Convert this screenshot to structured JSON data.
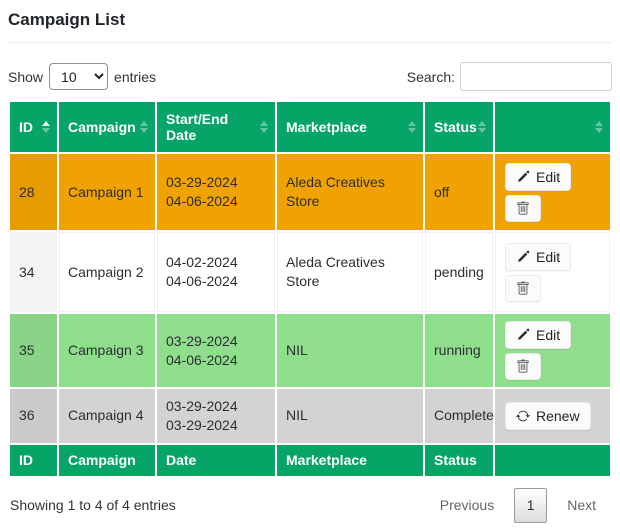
{
  "page": {
    "title": "Campaign List"
  },
  "controls": {
    "show_label": "Show",
    "page_length": "10",
    "entries_label": "entries",
    "search_label": "Search:",
    "search_value": "",
    "search_placeholder": ""
  },
  "colors": {
    "header_green": "#06a466",
    "row_orange": "#f0a202",
    "row_white": "#ffffff",
    "row_green": "#8fde8c",
    "row_gray": "#d3d3d3"
  },
  "table": {
    "headers": [
      {
        "label": "ID",
        "sort": "asc"
      },
      {
        "label": "Campaign",
        "sort": "none"
      },
      {
        "label": "Start/End Date",
        "sort": "none"
      },
      {
        "label": "Marketplace",
        "sort": "none"
      },
      {
        "label": "Status",
        "sort": "none"
      },
      {
        "label": "",
        "sort": "none"
      }
    ],
    "footers": [
      "ID",
      "Campaign",
      "Date",
      "Marketplace",
      "Status",
      ""
    ],
    "action_labels": {
      "edit": "Edit",
      "delete": "",
      "renew": "Renew"
    },
    "rows": [
      {
        "id": "28",
        "campaign": "Campaign 1",
        "start_date": "03-29-2024",
        "end_date": "04-06-2024",
        "marketplace": "Aleda Creatives Store",
        "status": "off",
        "row_color": "#f0a202",
        "buttons": [
          "edit",
          "delete"
        ]
      },
      {
        "id": "34",
        "campaign": "Campaign 2",
        "start_date": "04-02-2024",
        "end_date": "04-06-2024",
        "marketplace": "Aleda Creatives Store",
        "status": "pending",
        "row_color": "#ffffff",
        "buttons": [
          "edit",
          "delete"
        ]
      },
      {
        "id": "35",
        "campaign": "Campaign 3",
        "start_date": "03-29-2024",
        "end_date": "04-06-2024",
        "marketplace": "NIL",
        "status": "running",
        "row_color": "#8fde8c",
        "buttons": [
          "edit",
          "delete"
        ]
      },
      {
        "id": "36",
        "campaign": "Campaign 4",
        "start_date": "03-29-2024",
        "end_date": "03-29-2024",
        "marketplace": "NIL",
        "status": "Complete",
        "row_color": "#d3d3d3",
        "buttons": [
          "renew"
        ]
      }
    ]
  },
  "footer_info": {
    "summary": "Showing 1 to 4 of 4 entries"
  },
  "pagination": {
    "previous": "Previous",
    "current": "1",
    "next": "Next"
  }
}
